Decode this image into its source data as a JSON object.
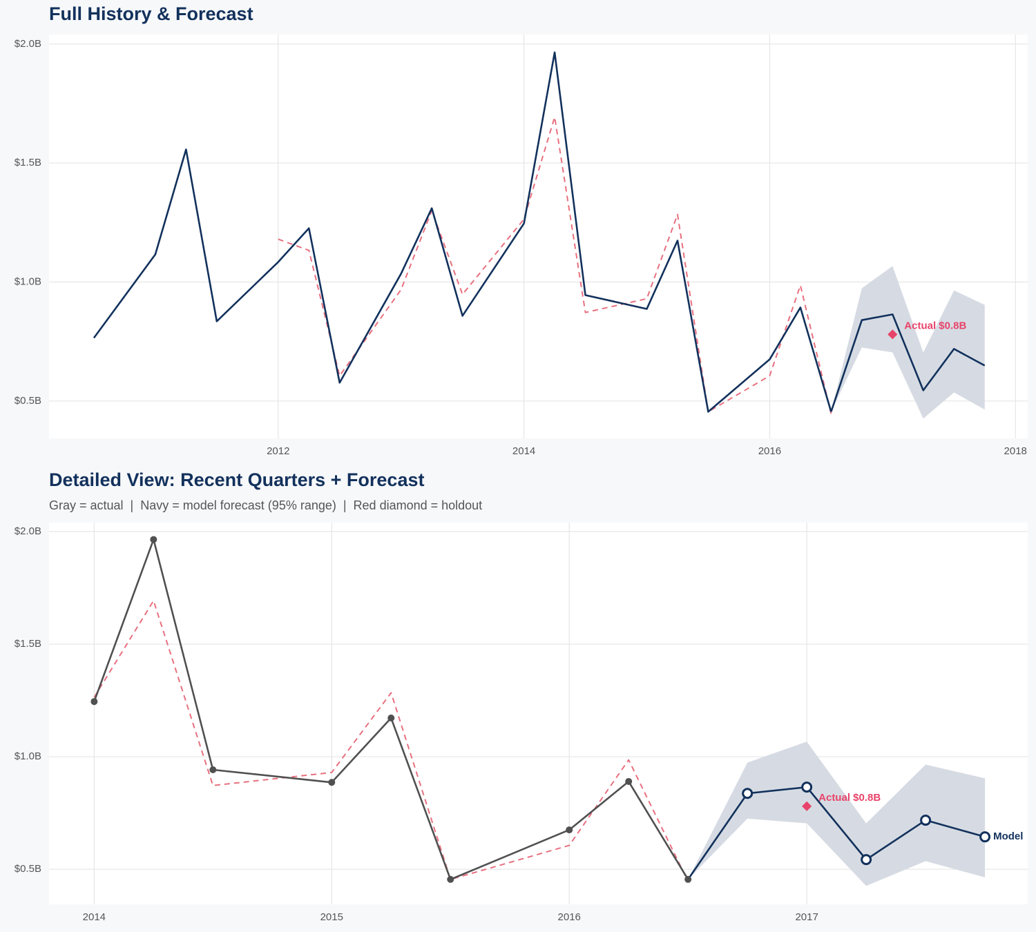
{
  "chart_data": [
    {
      "type": "line",
      "title": "Full History & Forecast",
      "x": [
        2010.5,
        2011,
        2011.25,
        2011.5,
        2012,
        2012.25,
        2012.5,
        2013,
        2013.25,
        2013.5,
        2014,
        2014.25,
        2014.5,
        2015,
        2015.25,
        2015.5,
        2016,
        2016.25,
        2016.5,
        2016.75,
        2017,
        2017.25,
        2017.5,
        2017.75
      ],
      "series": [
        {
          "color": "#e8707f",
          "dash": true,
          "values": [
            null,
            null,
            null,
            null,
            1.18,
            1.133,
            0.606,
            0.968,
            1.3,
            0.948,
            1.264,
            1.693,
            0.872,
            0.93,
            1.284,
            0.455,
            0.606,
            0.986,
            0.446,
            null,
            null,
            null,
            null,
            null
          ]
        },
        {
          "color": "#12315c",
          "values": [
            0.765,
            1.116,
            1.557,
            0.835,
            1.084,
            1.226,
            0.577,
            1.035,
            1.31,
            0.858,
            1.246,
            1.965,
            0.945,
            0.887,
            1.174,
            0.455,
            0.675,
            0.893,
            0.455,
            null,
            null,
            null,
            null,
            null
          ]
        },
        {
          "color": "#12315c",
          "values": [
            null,
            null,
            null,
            null,
            null,
            null,
            null,
            null,
            null,
            null,
            null,
            null,
            null,
            null,
            null,
            null,
            null,
            null,
            0.455,
            0.84,
            0.864,
            0.545,
            0.719,
            0.649
          ]
        }
      ],
      "band": {
        "color": "#d6dbe3",
        "lower": [
          null,
          null,
          null,
          null,
          null,
          null,
          null,
          null,
          null,
          null,
          null,
          null,
          null,
          null,
          null,
          null,
          null,
          null,
          0.455,
          0.725,
          0.704,
          0.426,
          0.536,
          0.464
        ],
        "upper": [
          null,
          null,
          null,
          null,
          null,
          null,
          null,
          null,
          null,
          null,
          null,
          null,
          null,
          null,
          null,
          null,
          null,
          null,
          0.455,
          0.974,
          1.067,
          0.704,
          0.965,
          0.904
        ]
      },
      "annotations": [
        {
          "x": 2017,
          "value": 0.78,
          "label": "Actual $0.8B",
          "color": "#e8436a"
        }
      ],
      "xlim": [
        2010.135,
        2018.1
      ],
      "xticks": [
        2012,
        2014,
        2016,
        2018
      ],
      "ylim": [
        0.343,
        2.04
      ],
      "yticks": [
        {
          "value": 0.5,
          "label": "$0.5B"
        },
        {
          "value": 1.0,
          "label": "$1.0B"
        },
        {
          "value": 1.5,
          "label": "$1.5B"
        },
        {
          "value": 2.0,
          "label": "$2.0B"
        }
      ],
      "grid": true
    },
    {
      "type": "line",
      "title": "Detailed View: Recent Quarters + Forecast",
      "subtitle": "Gray = actual  |  Navy = model forecast (95% range)  |  Red diamond = holdout",
      "x": [
        2014,
        2014.25,
        2014.5,
        2015,
        2015.25,
        2015.5,
        2016,
        2016.25,
        2016.5,
        2016.75,
        2017,
        2017.25,
        2017.5,
        2017.75
      ],
      "series": [
        {
          "color": "#e8707f",
          "dash": true,
          "values": [
            1.264,
            1.693,
            0.872,
            0.93,
            1.284,
            0.455,
            0.606,
            0.986,
            0.446,
            null,
            null,
            null,
            null,
            null
          ]
        },
        {
          "color": "#12315c",
          "name": "Model",
          "markers": "open",
          "values": [
            null,
            null,
            null,
            null,
            null,
            null,
            null,
            null,
            0.455,
            0.837,
            0.865,
            0.543,
            0.718,
            0.644
          ]
        },
        {
          "color": "#505050",
          "markers": "filled",
          "values": [
            1.245,
            1.965,
            0.942,
            0.886,
            1.172,
            0.455,
            0.675,
            0.89,
            0.455,
            null,
            null,
            null,
            null,
            null
          ]
        }
      ],
      "band": {
        "color": "#d6dbe3",
        "lower": [
          null,
          null,
          null,
          null,
          null,
          null,
          null,
          null,
          0.455,
          0.725,
          0.704,
          0.426,
          0.536,
          0.464
        ],
        "upper": [
          null,
          null,
          null,
          null,
          null,
          null,
          null,
          null,
          0.455,
          0.974,
          1.067,
          0.704,
          0.965,
          0.904
        ]
      },
      "annotations": [
        {
          "x": 2017,
          "value": 0.78,
          "label": "Actual $0.8B",
          "color": "#e8436a"
        }
      ],
      "xlim": [
        2013.81,
        2017.93
      ],
      "xticks": [
        2014,
        2015,
        2016,
        2017
      ],
      "ylim": [
        0.344,
        2.04
      ],
      "yticks": [
        {
          "value": 0.5,
          "label": "$0.5B"
        },
        {
          "value": 1.0,
          "label": "$1.0B"
        },
        {
          "value": 1.5,
          "label": "$1.5B"
        },
        {
          "value": 2.0,
          "label": "$2.0B"
        }
      ],
      "grid": true
    }
  ]
}
